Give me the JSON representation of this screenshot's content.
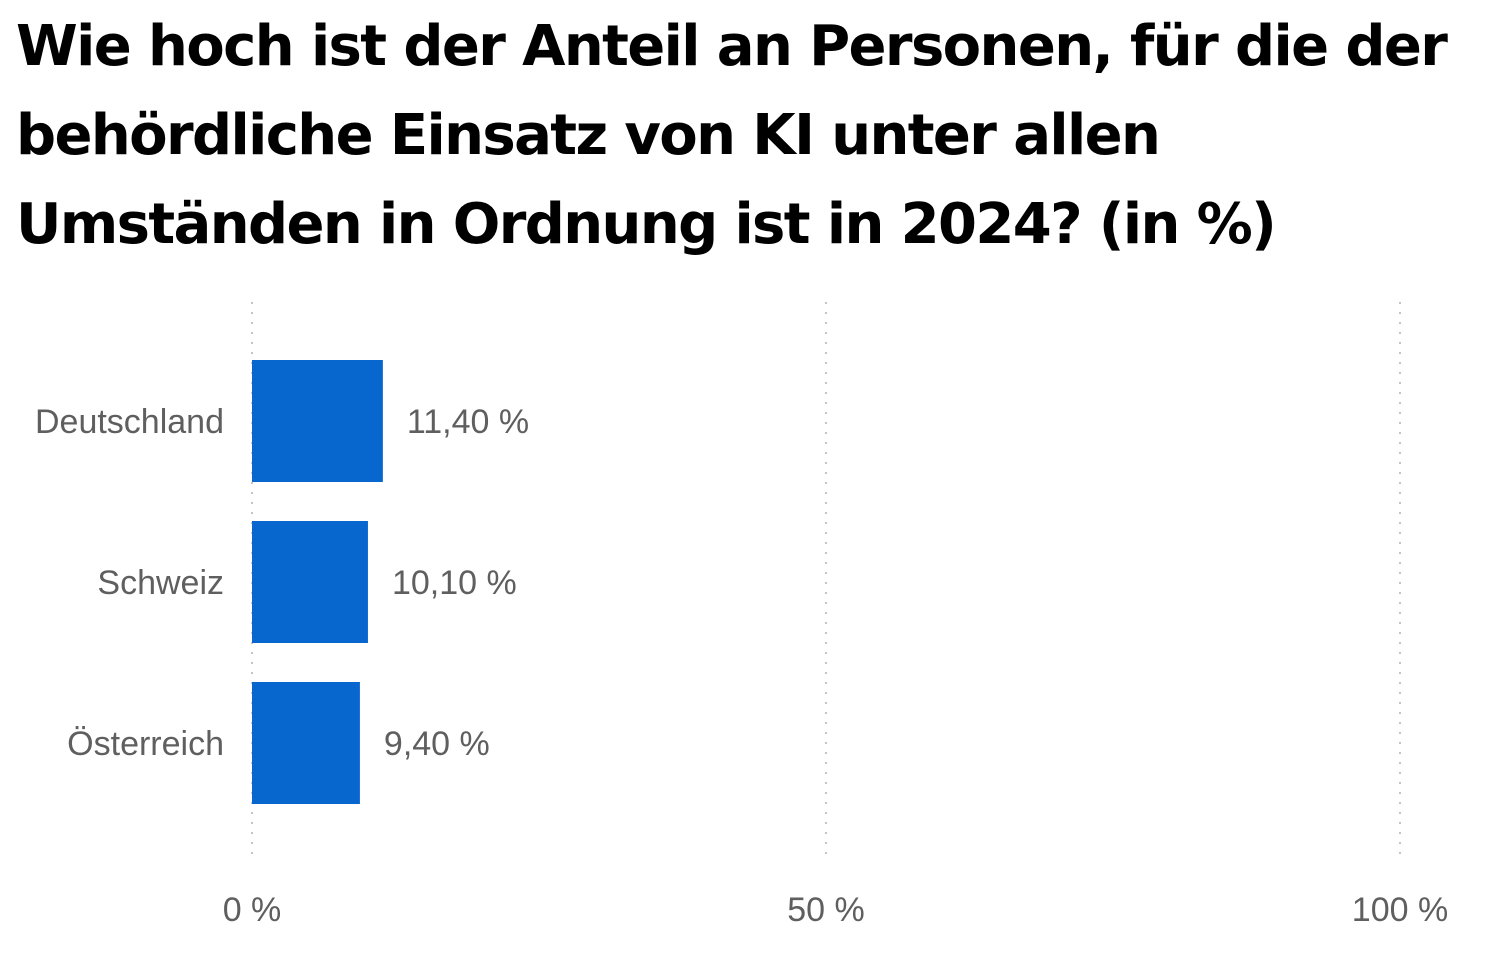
{
  "chart_data": {
    "type": "bar",
    "orientation": "horizontal",
    "title": "Wie hoch ist der Anteil an Personen, für die der behördliche Einsatz von KI unter allen Umständen in Ordnung ist in 2024? (in %)",
    "categories": [
      "Deutschland",
      "Schweiz",
      "Österreich"
    ],
    "values": [
      11.4,
      10.1,
      9.4
    ],
    "value_labels": [
      "11,40 %",
      "10,10 %",
      "9,40 %"
    ],
    "xlim": [
      0,
      100
    ],
    "x_ticks": [
      0,
      50,
      100
    ],
    "x_tick_labels": [
      "0 %",
      "50 %",
      "100 %"
    ],
    "grid": "vertical dotted",
    "bar_color": "#0866cf"
  }
}
